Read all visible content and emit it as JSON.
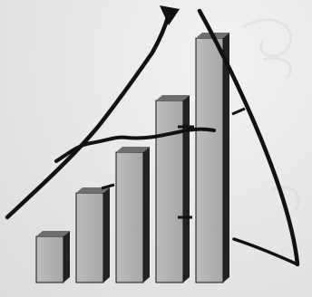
{
  "illustration": {
    "bar_levels": [
      0.17,
      0.33,
      0.48,
      0.67,
      0.9
    ],
    "colors": {
      "background": "#e9e9e9",
      "bar_front": "#a6a6a6",
      "bar_front_light": "#bdbdbd",
      "bar_side": "#222222",
      "bar_top": "#6e6e6e",
      "stroke": "#111111",
      "ghost_text": "#d2d2d2"
    },
    "icons": [
      "growth-arrow-icon"
    ]
  }
}
